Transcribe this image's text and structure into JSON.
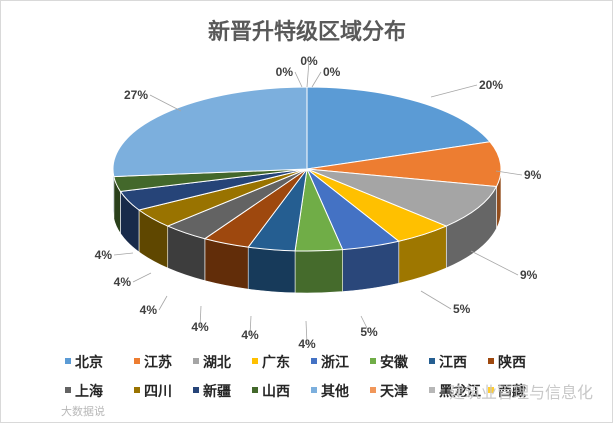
{
  "chart_data": {
    "type": "pie",
    "title": "新晋升特级区域分布",
    "categories": [
      "北京",
      "江苏",
      "湖北",
      "广东",
      "浙江",
      "安徽",
      "江西",
      "陕西",
      "上海",
      "四川",
      "新疆",
      "山西",
      "其他",
      "天津",
      "黑龙江",
      "西藏"
    ],
    "values": [
      20,
      9,
      9,
      5,
      5,
      4,
      4,
      4,
      4,
      4,
      4,
      3,
      27,
      0,
      0,
      0
    ],
    "labels": [
      "20%",
      "9%",
      "9%",
      "5%",
      "5%",
      "4%",
      "4%",
      "4%",
      "4%",
      "4%",
      "4%",
      "",
      "27%",
      "0%",
      "0%",
      "0%"
    ],
    "colors": [
      "#5B9BD5",
      "#ED7D31",
      "#A5A5A5",
      "#FFC000",
      "#4472C4",
      "#70AD47",
      "#255E91",
      "#9E480E",
      "#636363",
      "#997300",
      "#264478",
      "#43682B",
      "#7CAFDD",
      "#F1975A",
      "#B7B7B7",
      "#FFCD33"
    ],
    "legend_position": "bottom",
    "style": "3d"
  },
  "watermarks": {
    "right": "建筑业管理与信息化",
    "left": "大数据说"
  }
}
